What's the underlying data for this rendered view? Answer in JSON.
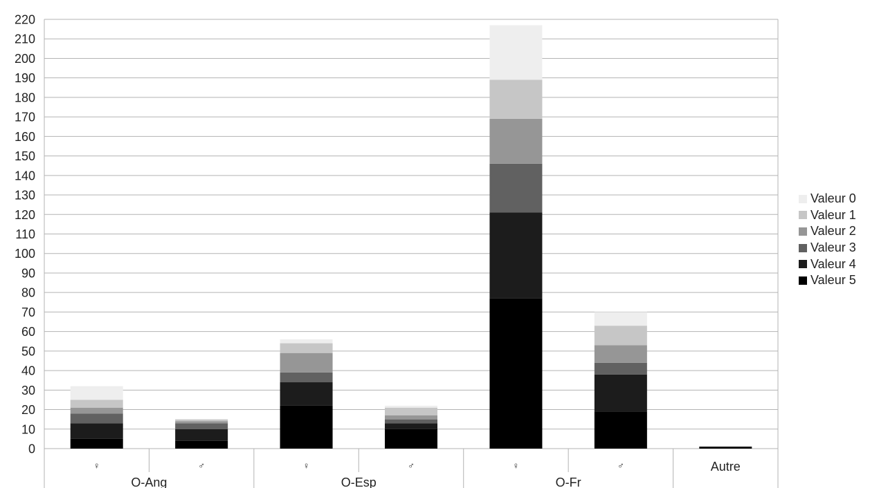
{
  "chart_data": {
    "type": "bar",
    "stacked": true,
    "title": "",
    "xlabel": "",
    "ylabel": "",
    "ylim": [
      0,
      220
    ],
    "y_ticks": [
      0,
      10,
      20,
      30,
      40,
      50,
      60,
      70,
      80,
      90,
      100,
      110,
      120,
      130,
      140,
      150,
      160,
      170,
      180,
      190,
      200,
      210,
      220
    ],
    "grid": true,
    "legend_position": "right",
    "categories": [
      "♀",
      "♂",
      "♀",
      "♂",
      "♀",
      "♂",
      "Autre"
    ],
    "groups": [
      {
        "label": "O-Ang",
        "span": 2
      },
      {
        "label": "O-Esp",
        "span": 2
      },
      {
        "label": "O-Fr",
        "span": 2
      },
      {
        "label": "",
        "span": 1
      }
    ],
    "series": [
      {
        "name": "Valeur 5",
        "color": "#000000",
        "values": [
          5,
          4,
          22,
          10,
          77,
          19,
          1
        ]
      },
      {
        "name": "Valeur 4",
        "color": "#1c1c1c",
        "values": [
          8,
          6,
          12,
          3,
          44,
          19,
          0
        ]
      },
      {
        "name": "Valeur 3",
        "color": "#616161",
        "values": [
          5,
          3,
          5,
          2,
          25,
          6,
          0
        ]
      },
      {
        "name": "Valeur 2",
        "color": "#969696",
        "values": [
          3,
          1,
          10,
          2,
          23,
          9,
          0
        ]
      },
      {
        "name": "Valeur 1",
        "color": "#c6c6c6",
        "values": [
          4,
          1,
          5,
          4,
          20,
          10,
          0
        ]
      },
      {
        "name": "Valeur 0",
        "color": "#eeeeee",
        "values": [
          7,
          0,
          2,
          1,
          28,
          7,
          0
        ]
      }
    ]
  }
}
